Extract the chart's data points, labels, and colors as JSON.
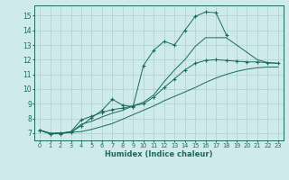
{
  "xlabel": "Humidex (Indice chaleur)",
  "bg_color": "#ceeaea",
  "line_color": "#1a6b5a",
  "grid_color": "#aed0d0",
  "xlim": [
    -0.5,
    23.5
  ],
  "ylim": [
    6.5,
    15.7
  ],
  "xticks": [
    0,
    1,
    2,
    3,
    4,
    5,
    6,
    7,
    8,
    9,
    10,
    11,
    12,
    13,
    14,
    15,
    16,
    17,
    18,
    19,
    20,
    21,
    22,
    23
  ],
  "yticks": [
    7,
    8,
    9,
    10,
    11,
    12,
    13,
    14,
    15
  ],
  "curves": [
    {
      "x": [
        0,
        1,
        2,
        3,
        4,
        5,
        6,
        7,
        8,
        9,
        10,
        11,
        12,
        13,
        14,
        15,
        16,
        17,
        18
      ],
      "y": [
        7.2,
        6.95,
        6.95,
        7.05,
        7.5,
        8.05,
        8.55,
        9.3,
        8.9,
        8.8,
        11.6,
        12.65,
        13.25,
        13.0,
        14.0,
        14.95,
        15.25,
        15.2,
        13.7
      ],
      "marker": "+"
    },
    {
      "x": [
        0,
        1,
        2,
        3,
        4,
        5,
        6,
        7,
        8,
        9,
        10,
        11,
        12,
        13,
        14,
        15,
        16,
        17,
        18,
        19,
        20,
        21,
        22,
        23
      ],
      "y": [
        7.2,
        6.95,
        7.0,
        7.05,
        7.6,
        7.8,
        8.1,
        8.35,
        8.55,
        8.85,
        9.1,
        9.6,
        10.5,
        11.3,
        12.0,
        12.9,
        13.5,
        13.5,
        13.5,
        13.0,
        12.5,
        12.0,
        11.8,
        11.75
      ],
      "marker": null
    },
    {
      "x": [
        0,
        1,
        2,
        3,
        4,
        5,
        6,
        7,
        8,
        9,
        10,
        11,
        12,
        13,
        14,
        15,
        16,
        17,
        18,
        19,
        20,
        21,
        22,
        23
      ],
      "y": [
        7.2,
        6.95,
        7.0,
        7.1,
        7.9,
        8.15,
        8.4,
        8.6,
        8.7,
        8.85,
        9.0,
        9.45,
        10.1,
        10.7,
        11.3,
        11.75,
        11.95,
        12.0,
        11.95,
        11.9,
        11.85,
        11.85,
        11.8,
        11.75
      ],
      "marker": "+"
    },
    {
      "x": [
        0,
        1,
        2,
        3,
        4,
        5,
        6,
        7,
        8,
        9,
        10,
        11,
        12,
        13,
        14,
        15,
        16,
        17,
        18,
        19,
        20,
        21,
        22,
        23
      ],
      "y": [
        7.2,
        7.0,
        7.0,
        7.05,
        7.1,
        7.25,
        7.45,
        7.65,
        7.95,
        8.25,
        8.55,
        8.85,
        9.2,
        9.5,
        9.8,
        10.1,
        10.45,
        10.75,
        11.0,
        11.2,
        11.35,
        11.45,
        11.5,
        11.5
      ],
      "marker": null
    }
  ]
}
